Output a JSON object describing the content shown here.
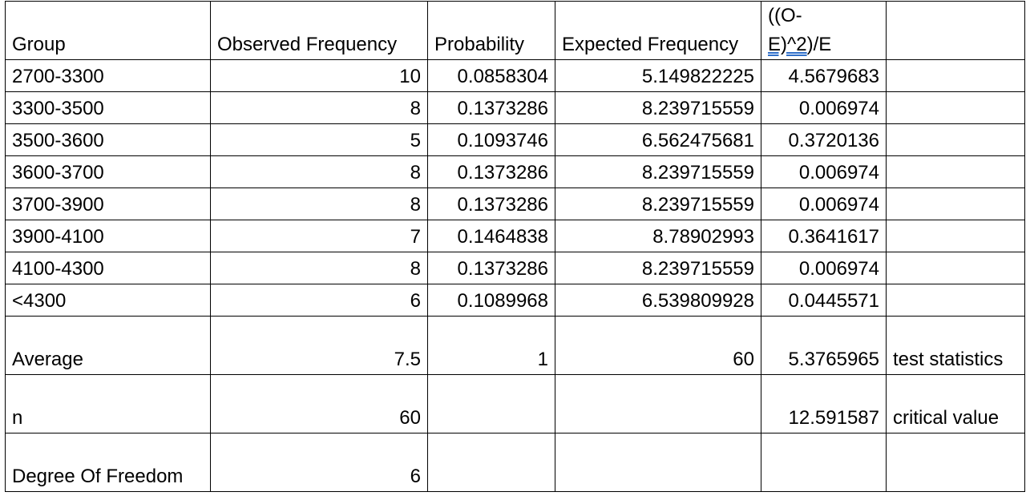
{
  "header": {
    "group": "Group",
    "observed": "Observed Frequency",
    "probability": "Probability",
    "expected": "Expected Frequency",
    "chi_a": "((O-",
    "chi_b": "E)^2",
    "chi_c": ")/E"
  },
  "rows": [
    {
      "group": "2700-3300",
      "observed": "10",
      "probability": "0.0858304",
      "expected": "5.149822225",
      "chi": "4.5679683"
    },
    {
      "group": "3300-3500",
      "observed": "8",
      "probability": "0.1373286",
      "expected": "8.239715559",
      "chi": "0.006974"
    },
    {
      "group": "3500-3600",
      "observed": "5",
      "probability": "0.1093746",
      "expected": "6.562475681",
      "chi": "0.3720136"
    },
    {
      "group": "3600-3700",
      "observed": "8",
      "probability": "0.1373286",
      "expected": "8.239715559",
      "chi": "0.006974"
    },
    {
      "group": "3700-3900",
      "observed": "8",
      "probability": "0.1373286",
      "expected": "8.239715559",
      "chi": "0.006974"
    },
    {
      "group": "3900-4100",
      "observed": "7",
      "probability": "0.1464838",
      "expected": "8.78902993",
      "chi": "0.3641617"
    },
    {
      "group": "4100-4300",
      "observed": "8",
      "probability": "0.1373286",
      "expected": "8.239715559",
      "chi": "0.006974"
    },
    {
      "group": "<4300",
      "observed": "6",
      "probability": "0.1089968",
      "expected": "6.539809928",
      "chi": "0.0445571"
    }
  ],
  "summary": {
    "average": {
      "label": "Average",
      "observed": "7.5",
      "probability": "1",
      "expected": "60",
      "chi": "5.3765965",
      "note": "test statistics"
    },
    "n": {
      "label": "n",
      "observed": "60",
      "chi": "12.591587",
      "note": "critical value"
    },
    "dof": {
      "label": "Degree Of Freedom",
      "observed": "6"
    }
  }
}
